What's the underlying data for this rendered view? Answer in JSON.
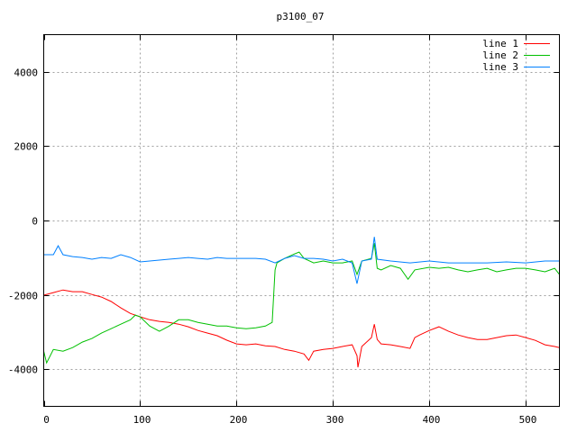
{
  "chart_data": {
    "type": "line",
    "title": "p3100_07",
    "xlabel": "",
    "ylabel": "",
    "xlim": [
      0,
      535
    ],
    "ylim": [
      -5000,
      5000
    ],
    "xticks": [
      0,
      100,
      200,
      300,
      400,
      500
    ],
    "yticks": [
      -4000,
      -2000,
      0,
      2000,
      4000
    ],
    "grid": true,
    "legend_position": "top-right",
    "series": [
      {
        "name": "line 1",
        "color": "#ff0000",
        "x": [
          0,
          10,
          20,
          30,
          40,
          50,
          60,
          70,
          80,
          90,
          100,
          110,
          120,
          130,
          140,
          150,
          160,
          170,
          180,
          190,
          200,
          210,
          220,
          230,
          240,
          250,
          260,
          270,
          275,
          280,
          290,
          300,
          310,
          320,
          325,
          326,
          330,
          340,
          343,
          346,
          350,
          360,
          370,
          380,
          385,
          390,
          400,
          410,
          420,
          430,
          440,
          450,
          460,
          470,
          480,
          490,
          500,
          510,
          520,
          530,
          535
        ],
        "y": [
          -2010,
          -1940,
          -1870,
          -1915,
          -1915,
          -1990,
          -2060,
          -2180,
          -2350,
          -2500,
          -2590,
          -2670,
          -2715,
          -2740,
          -2790,
          -2860,
          -2960,
          -3030,
          -3100,
          -3220,
          -3320,
          -3345,
          -3320,
          -3370,
          -3390,
          -3470,
          -3515,
          -3590,
          -3760,
          -3515,
          -3470,
          -3440,
          -3390,
          -3345,
          -3640,
          -3950,
          -3390,
          -3150,
          -2790,
          -3200,
          -3320,
          -3345,
          -3390,
          -3440,
          -3150,
          -3080,
          -2960,
          -2860,
          -2980,
          -3080,
          -3150,
          -3200,
          -3200,
          -3150,
          -3100,
          -3080,
          -3150,
          -3225,
          -3345,
          -3390,
          -3420
        ]
      },
      {
        "name": "line 2",
        "color": "#00c000",
        "x": [
          0,
          3,
          10,
          20,
          30,
          40,
          50,
          60,
          70,
          80,
          90,
          95,
          100,
          110,
          120,
          130,
          140,
          150,
          160,
          170,
          180,
          190,
          200,
          210,
          220,
          230,
          237,
          240,
          242,
          250,
          260,
          265,
          270,
          280,
          290,
          300,
          310,
          320,
          325,
          330,
          340,
          343,
          346,
          350,
          360,
          370,
          378,
          385,
          400,
          410,
          420,
          430,
          440,
          450,
          460,
          470,
          480,
          490,
          500,
          510,
          520,
          530,
          535
        ],
        "y": [
          -3515,
          -3830,
          -3470,
          -3515,
          -3420,
          -3270,
          -3175,
          -3030,
          -2910,
          -2790,
          -2670,
          -2545,
          -2590,
          -2840,
          -2980,
          -2840,
          -2670,
          -2670,
          -2740,
          -2790,
          -2840,
          -2840,
          -2885,
          -2910,
          -2885,
          -2840,
          -2740,
          -1330,
          -1140,
          -1020,
          -900,
          -850,
          -1020,
          -1140,
          -1090,
          -1140,
          -1140,
          -1090,
          -1450,
          -1090,
          -1020,
          -610,
          -1285,
          -1330,
          -1210,
          -1285,
          -1580,
          -1330,
          -1260,
          -1285,
          -1260,
          -1330,
          -1380,
          -1330,
          -1285,
          -1380,
          -1330,
          -1285,
          -1285,
          -1330,
          -1380,
          -1285,
          -1450
        ]
      },
      {
        "name": "line 3",
        "color": "#0080ff",
        "x": [
          0,
          10,
          15,
          20,
          30,
          40,
          50,
          60,
          70,
          80,
          90,
          100,
          110,
          120,
          130,
          140,
          150,
          160,
          170,
          180,
          190,
          200,
          210,
          220,
          230,
          240,
          250,
          260,
          270,
          280,
          290,
          300,
          310,
          320,
          325,
          330,
          340,
          343,
          346,
          360,
          380,
          400,
          420,
          440,
          460,
          480,
          500,
          520,
          535
        ],
        "y": [
          -920,
          -920,
          -680,
          -920,
          -970,
          -995,
          -1040,
          -995,
          -1020,
          -920,
          -995,
          -1115,
          -1090,
          -1065,
          -1040,
          -1020,
          -995,
          -1020,
          -1040,
          -995,
          -1020,
          -1020,
          -1020,
          -1020,
          -1040,
          -1140,
          -1020,
          -945,
          -1020,
          -1020,
          -1040,
          -1090,
          -1040,
          -1140,
          -1700,
          -1090,
          -1040,
          -440,
          -1040,
          -1090,
          -1140,
          -1090,
          -1140,
          -1140,
          -1140,
          -1115,
          -1140,
          -1090,
          -1090
        ]
      }
    ]
  }
}
